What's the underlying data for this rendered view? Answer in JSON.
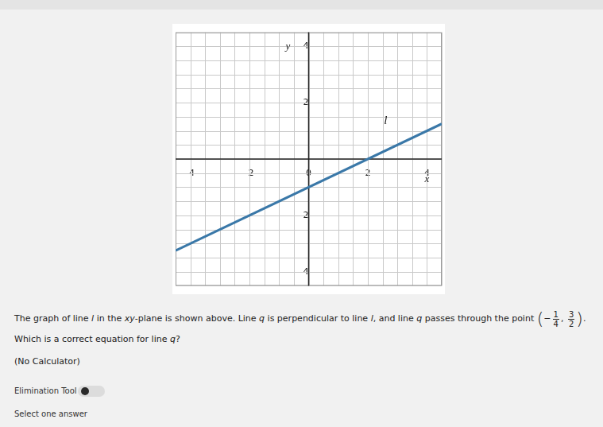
{
  "chart_data": {
    "type": "line",
    "x": [
      -4.5,
      4.5
    ],
    "values": [
      -3.25,
      1.25
    ],
    "color": "#3a78a8",
    "xlim": [
      -4.5,
      4.5
    ],
    "ylim": [
      -4.5,
      4.5
    ],
    "xticks": [
      -4,
      -2,
      0,
      2,
      4
    ],
    "yticks": [
      -4,
      -2,
      2,
      4
    ],
    "grid": true,
    "x_label": "x",
    "y_label": "y",
    "annotations": [
      {
        "text": "l",
        "x": 2.6,
        "y": 1.35
      }
    ]
  },
  "question": {
    "before": [
      {
        "text": "The graph of line ",
        "italic": false
      },
      {
        "text": "l",
        "italic": true
      },
      {
        "text": " in the ",
        "italic": false
      },
      {
        "text": "xy",
        "italic": true
      },
      {
        "text": "-plane is shown above. Line ",
        "italic": false
      },
      {
        "text": "q",
        "italic": true
      },
      {
        "text": " is perpendicular to line ",
        "italic": false
      },
      {
        "text": "l",
        "italic": true
      },
      {
        "text": ", and line ",
        "italic": false
      },
      {
        "text": "q",
        "italic": true
      },
      {
        "text": " passes through the point ",
        "italic": false
      }
    ],
    "point": [
      {
        "sign": "−",
        "num": "1",
        "den": "4"
      },
      {
        "sign": "",
        "num": "3",
        "den": "2"
      }
    ],
    "after": [
      {
        "text": ". Which is a correct equation for line ",
        "italic": false
      },
      {
        "text": "q",
        "italic": true
      },
      {
        "text": "?",
        "italic": false
      }
    ]
  },
  "note": "(No Calculator)",
  "tool": "Elimination Tool",
  "prompt": "Select one answer"
}
